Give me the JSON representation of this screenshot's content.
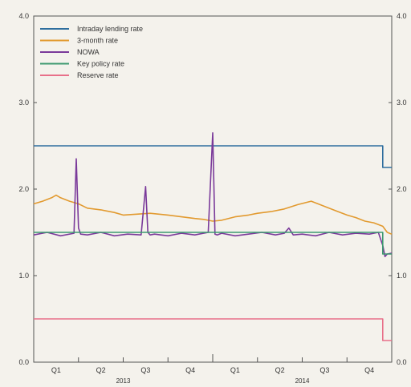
{
  "chart_data": {
    "type": "line",
    "title": "",
    "xlabel": "",
    "ylabel": "",
    "ylim": [
      0.0,
      4.0
    ],
    "yticks": [
      "0.0",
      "1.0",
      "2.0",
      "3.0",
      "4.0"
    ],
    "ytick_values": [
      0.0,
      1.0,
      2.0,
      3.0,
      4.0
    ],
    "xlim": [
      0,
      8
    ],
    "quarter_labels": [
      "Q1",
      "Q2",
      "Q3",
      "Q4",
      "Q1",
      "Q2",
      "Q3",
      "Q4"
    ],
    "year_labels": [
      {
        "label": "2013",
        "x": 2
      },
      {
        "label": "2014",
        "x": 6
      }
    ],
    "grid": false,
    "legend_position": "top-left",
    "series": [
      {
        "name": "Intraday lending rate",
        "color": "#2e6e9e",
        "x": [
          0,
          7.8,
          7.8,
          8.0
        ],
        "values": [
          2.5,
          2.5,
          2.25,
          2.25
        ]
      },
      {
        "name": "3-month rate",
        "color": "#e29a2f",
        "x": [
          0,
          0.2,
          0.4,
          0.5,
          0.6,
          0.8,
          1.0,
          1.2,
          1.5,
          1.8,
          2.0,
          2.3,
          2.6,
          3.0,
          3.3,
          3.6,
          3.8,
          4.0,
          4.2,
          4.5,
          4.8,
          5.0,
          5.3,
          5.6,
          5.9,
          6.2,
          6.5,
          6.8,
          7.0,
          7.2,
          7.4,
          7.6,
          7.8,
          7.9,
          8.0
        ],
        "values": [
          1.83,
          1.86,
          1.9,
          1.93,
          1.9,
          1.86,
          1.83,
          1.78,
          1.76,
          1.73,
          1.7,
          1.71,
          1.72,
          1.7,
          1.68,
          1.66,
          1.65,
          1.63,
          1.64,
          1.68,
          1.7,
          1.72,
          1.74,
          1.77,
          1.82,
          1.86,
          1.8,
          1.74,
          1.7,
          1.67,
          1.63,
          1.61,
          1.57,
          1.5,
          1.48
        ]
      },
      {
        "name": "NOWA",
        "color": "#7a3a9a",
        "x": [
          0,
          0.3,
          0.6,
          0.9,
          0.95,
          1.0,
          1.05,
          1.2,
          1.5,
          1.8,
          2.1,
          2.4,
          2.5,
          2.55,
          2.6,
          2.7,
          3.0,
          3.3,
          3.6,
          3.9,
          4.0,
          4.05,
          4.1,
          4.2,
          4.5,
          4.8,
          5.1,
          5.4,
          5.6,
          5.7,
          5.8,
          6.0,
          6.3,
          6.6,
          6.9,
          7.2,
          7.5,
          7.7,
          7.8,
          7.85,
          7.9,
          8.0
        ],
        "values": [
          1.47,
          1.5,
          1.46,
          1.49,
          2.35,
          1.55,
          1.48,
          1.47,
          1.5,
          1.46,
          1.48,
          1.47,
          2.03,
          1.5,
          1.47,
          1.48,
          1.46,
          1.49,
          1.47,
          1.5,
          2.65,
          1.48,
          1.47,
          1.49,
          1.46,
          1.48,
          1.5,
          1.47,
          1.49,
          1.55,
          1.47,
          1.48,
          1.46,
          1.5,
          1.47,
          1.49,
          1.48,
          1.5,
          1.35,
          1.22,
          1.25,
          1.26
        ]
      },
      {
        "name": "Key policy rate",
        "color": "#3d9970",
        "x": [
          0,
          7.8,
          7.8,
          8.0
        ],
        "values": [
          1.5,
          1.5,
          1.25,
          1.25
        ]
      },
      {
        "name": "Reserve rate",
        "color": "#e8708a",
        "x": [
          0,
          7.8,
          7.8,
          8.0
        ],
        "values": [
          0.5,
          0.5,
          0.25,
          0.25
        ]
      }
    ]
  }
}
